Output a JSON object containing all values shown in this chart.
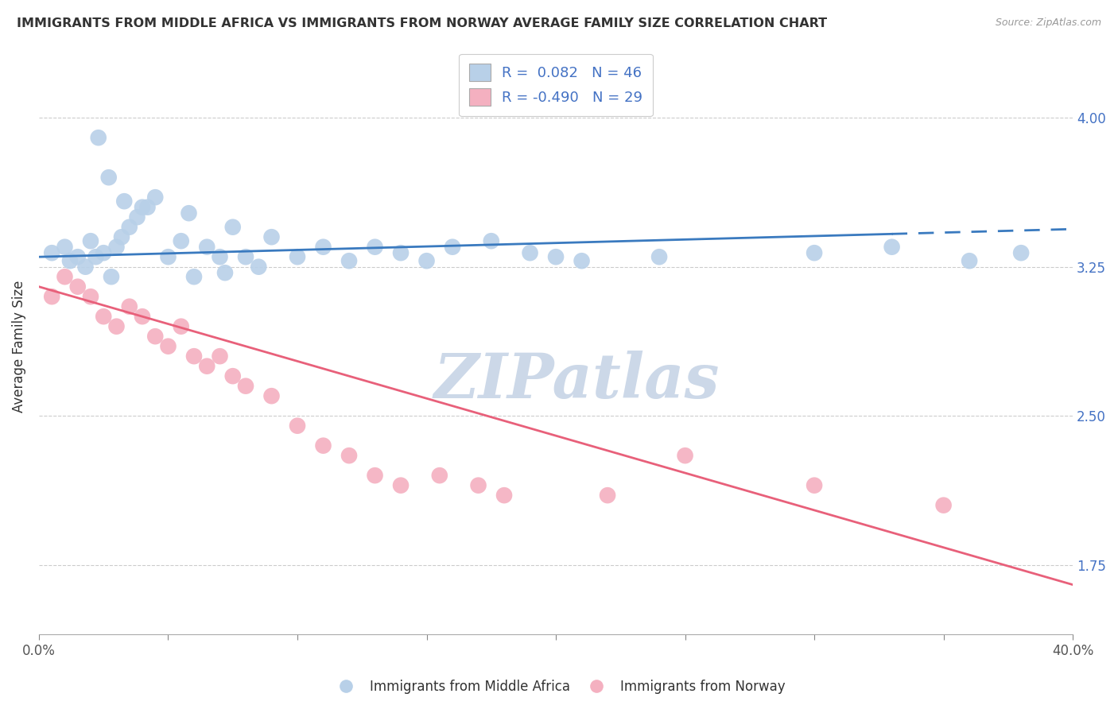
{
  "title": "IMMIGRANTS FROM MIDDLE AFRICA VS IMMIGRANTS FROM NORWAY AVERAGE FAMILY SIZE CORRELATION CHART",
  "source": "Source: ZipAtlas.com",
  "ylabel": "Average Family Size",
  "yticks": [
    1.75,
    2.5,
    3.25,
    4.0
  ],
  "xlim": [
    0.0,
    40.0
  ],
  "ylim": [
    1.4,
    4.3
  ],
  "legend_blue_r": "R =  0.082",
  "legend_blue_n": "N = 46",
  "legend_pink_r": "R = -0.490",
  "legend_pink_n": "N = 29",
  "blue_color": "#b8d0e8",
  "blue_line_color": "#3a7abf",
  "pink_color": "#f4b0c0",
  "pink_line_color": "#e8607a",
  "watermark": "ZIPatlas",
  "watermark_color": "#ccd8e8",
  "blue_scatter_x": [
    0.5,
    1.0,
    1.2,
    1.5,
    1.8,
    2.0,
    2.2,
    2.5,
    2.8,
    3.0,
    3.2,
    3.5,
    3.8,
    4.0,
    4.5,
    5.0,
    5.5,
    6.0,
    6.5,
    7.0,
    7.5,
    8.0,
    9.0,
    10.0,
    11.0,
    12.0,
    13.0,
    14.0,
    15.0,
    16.0,
    17.5,
    19.0,
    20.0,
    21.0,
    24.0,
    30.0,
    33.0,
    36.0,
    38.0,
    2.3,
    2.7,
    3.3,
    4.2,
    5.8,
    7.2,
    8.5
  ],
  "blue_scatter_y": [
    3.32,
    3.35,
    3.28,
    3.3,
    3.25,
    3.38,
    3.3,
    3.32,
    3.2,
    3.35,
    3.4,
    3.45,
    3.5,
    3.55,
    3.6,
    3.3,
    3.38,
    3.2,
    3.35,
    3.3,
    3.45,
    3.3,
    3.4,
    3.3,
    3.35,
    3.28,
    3.35,
    3.32,
    3.28,
    3.35,
    3.38,
    3.32,
    3.3,
    3.28,
    3.3,
    3.32,
    3.35,
    3.28,
    3.32,
    3.9,
    3.7,
    3.58,
    3.55,
    3.52,
    3.22,
    3.25
  ],
  "pink_scatter_x": [
    0.5,
    1.0,
    1.5,
    2.0,
    2.5,
    3.0,
    3.5,
    4.0,
    4.5,
    5.0,
    5.5,
    6.0,
    6.5,
    7.0,
    7.5,
    8.0,
    9.0,
    10.0,
    11.0,
    12.0,
    13.0,
    14.0,
    15.5,
    17.0,
    18.0,
    22.0,
    25.0,
    30.0,
    35.0
  ],
  "pink_scatter_y": [
    3.1,
    3.2,
    3.15,
    3.1,
    3.0,
    2.95,
    3.05,
    3.0,
    2.9,
    2.85,
    2.95,
    2.8,
    2.75,
    2.8,
    2.7,
    2.65,
    2.6,
    2.45,
    2.35,
    2.3,
    2.2,
    2.15,
    2.2,
    2.15,
    2.1,
    2.1,
    2.3,
    2.15,
    2.05
  ],
  "blue_line_y_start": 3.3,
  "blue_line_y_end": 3.44,
  "blue_solid_end": 33.0,
  "pink_line_y_start": 3.15,
  "pink_line_y_end": 1.65
}
